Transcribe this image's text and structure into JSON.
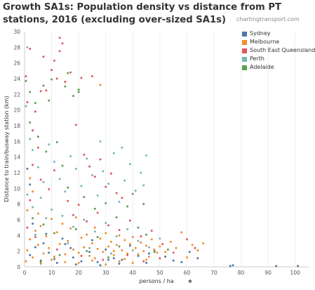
{
  "header": {
    "title": "Growth SA1s: Population density vs distance from PT stations, 2016 (excluding over-sized SA1s)",
    "watermark": "chartingtransport.com"
  },
  "chart_data": {
    "type": "scatter",
    "xlabel": "persons / ha",
    "ylabel": "Distance to train/busway station (km)",
    "xlim": [
      0,
      105
    ],
    "ylim": [
      0,
      30
    ],
    "x_ticks": [
      0,
      10,
      20,
      30,
      40,
      50,
      60,
      70,
      80,
      90,
      100
    ],
    "y_ticks": [
      0,
      2,
      4,
      6,
      8,
      10,
      12,
      14,
      16,
      18,
      20,
      22,
      24,
      26,
      28,
      30
    ],
    "grid": "vertical",
    "legend_position": "top-right",
    "series": [
      {
        "name": "Sydney",
        "color": "#4E79A7",
        "points": [
          [
            2,
            1.5
          ],
          [
            4,
            2.5
          ],
          [
            6,
            0.8
          ],
          [
            9,
            1.8
          ],
          [
            12,
            0.5
          ],
          [
            15,
            2.9
          ],
          [
            18,
            1.2
          ],
          [
            21,
            0.7
          ],
          [
            24,
            1.9
          ],
          [
            27,
            0.6
          ],
          [
            30,
            2.2
          ],
          [
            33,
            1.1
          ],
          [
            36,
            0.9
          ],
          [
            39,
            2.7
          ],
          [
            42,
            1.4
          ],
          [
            45,
            0.5
          ],
          [
            48,
            2.0
          ],
          [
            52,
            1.3
          ],
          [
            55,
            0.8
          ],
          [
            58,
            0.6
          ],
          [
            61,
            1.9
          ],
          [
            64,
            1.1
          ],
          [
            76,
            0.1
          ],
          [
            77,
            0.2
          ],
          [
            93,
            0.1
          ],
          [
            101,
            0.1
          ],
          [
            3,
            5.5
          ],
          [
            8,
            4.2
          ],
          [
            14,
            3.6
          ],
          [
            1,
            12.5
          ],
          [
            2,
            10.5
          ],
          [
            19,
            0.3
          ],
          [
            25,
            3.4
          ],
          [
            35,
            0.4
          ],
          [
            46,
            1.7
          ],
          [
            28,
            0.2
          ],
          [
            11,
            1.0
          ],
          [
            7,
            3.0
          ],
          [
            17,
            2.4
          ],
          [
            31,
            0.9
          ]
        ]
      },
      {
        "name": "Melbourne",
        "color": "#F28E2B",
        "points": [
          [
            1,
            2.1
          ],
          [
            2,
            3.5
          ],
          [
            3,
            1.2
          ],
          [
            4,
            4.6
          ],
          [
            5,
            2.8
          ],
          [
            6,
            5.2
          ],
          [
            7,
            1.7
          ],
          [
            8,
            3.9
          ],
          [
            9,
            2.4
          ],
          [
            10,
            6.1
          ],
          [
            11,
            1.3
          ],
          [
            12,
            4.4
          ],
          [
            13,
            2.9
          ],
          [
            14,
            5.5
          ],
          [
            15,
            1.6
          ],
          [
            16,
            3.3
          ],
          [
            17,
            4.9
          ],
          [
            18,
            2.2
          ],
          [
            19,
            6.3
          ],
          [
            20,
            1.8
          ],
          [
            21,
            3.7
          ],
          [
            22,
            2.5
          ],
          [
            23,
            4.1
          ],
          [
            24,
            1.4
          ],
          [
            25,
            3.0
          ],
          [
            26,
            5.0
          ],
          [
            27,
            2.3
          ],
          [
            28,
            3.6
          ],
          [
            29,
            1.9
          ],
          [
            30,
            4.3
          ],
          [
            31,
            2.6
          ],
          [
            32,
            3.2
          ],
          [
            33,
            1.5
          ],
          [
            34,
            2.8
          ],
          [
            35,
            4.0
          ],
          [
            36,
            2.1
          ],
          [
            37,
            3.4
          ],
          [
            38,
            1.7
          ],
          [
            39,
            2.9
          ],
          [
            40,
            3.8
          ],
          [
            41,
            2.4
          ],
          [
            42,
            1.6
          ],
          [
            43,
            3.1
          ],
          [
            44,
            2.0
          ],
          [
            45,
            2.7
          ],
          [
            46,
            1.3
          ],
          [
            47,
            3.5
          ],
          [
            48,
            2.2
          ],
          [
            49,
            1.8
          ],
          [
            50,
            2.6
          ],
          [
            52,
            1.9
          ],
          [
            54,
            3.2
          ],
          [
            56,
            2.4
          ],
          [
            58,
            4.4
          ],
          [
            60,
            1.2
          ],
          [
            62,
            2.8
          ],
          [
            64,
            2.1
          ],
          [
            66,
            3.0
          ],
          [
            1,
            7.2
          ],
          [
            3,
            9.6
          ],
          [
            5,
            6.8
          ],
          [
            2,
            11.3
          ],
          [
            0.5,
            0.7
          ],
          [
            6,
            0.4
          ],
          [
            10,
            0.9
          ],
          [
            15,
            0.6
          ],
          [
            20,
            0.5
          ],
          [
            25,
            0.8
          ],
          [
            30,
            0.3
          ],
          [
            35,
            0.7
          ],
          [
            40,
            0.5
          ],
          [
            45,
            0.9
          ],
          [
            28,
            23.2
          ],
          [
            33,
            2.0
          ],
          [
            26,
            1.1
          ],
          [
            37,
            1.0
          ]
        ]
      },
      {
        "name": "South East Queensland",
        "color": "#E15759",
        "points": [
          [
            0.5,
            24.3
          ],
          [
            1,
            21.0
          ],
          [
            2,
            27.8
          ],
          [
            3,
            17.4
          ],
          [
            4,
            19.8
          ],
          [
            5,
            15.2
          ],
          [
            7,
            26.8
          ],
          [
            8,
            22.5
          ],
          [
            10,
            25.1
          ],
          [
            12,
            24.0
          ],
          [
            13,
            29.2
          ],
          [
            14,
            28.5
          ],
          [
            15,
            23.6
          ],
          [
            17,
            24.8
          ],
          [
            19,
            18.1
          ],
          [
            22,
            14.3
          ],
          [
            24,
            12.8
          ],
          [
            26,
            11.5
          ],
          [
            28,
            13.7
          ],
          [
            30,
            10.2
          ],
          [
            32,
            11.9
          ],
          [
            34,
            9.4
          ],
          [
            36,
            8.8
          ],
          [
            3,
            13.0
          ],
          [
            6,
            11.1
          ],
          [
            9,
            9.9
          ],
          [
            11,
            12.3
          ],
          [
            16,
            8.4
          ],
          [
            18,
            6.6
          ],
          [
            20,
            7.9
          ],
          [
            23,
            5.8
          ],
          [
            27,
            6.9
          ],
          [
            31,
            5.3
          ],
          [
            35,
            4.7
          ],
          [
            39,
            5.9
          ],
          [
            43,
            3.9
          ],
          [
            47,
            4.6
          ],
          [
            51,
            2.9
          ],
          [
            55,
            1.8
          ],
          [
            60,
            3.5
          ],
          [
            63,
            2.4
          ],
          [
            1,
            5.0
          ],
          [
            2,
            8.5
          ],
          [
            4,
            3.8
          ],
          [
            12,
            2.2
          ],
          [
            21,
            1.4
          ],
          [
            29,
            0.9
          ],
          [
            38,
            1.5
          ],
          [
            44,
            0.7
          ],
          [
            50,
            1.1
          ],
          [
            13,
            27.5
          ],
          [
            11,
            26.3
          ],
          [
            6,
            22.4
          ],
          [
            21,
            24.1
          ],
          [
            25,
            24.3
          ]
        ]
      },
      {
        "name": "Perth",
        "color": "#76B7B2",
        "points": [
          [
            0.5,
            20.5
          ],
          [
            1,
            28.0
          ],
          [
            2,
            16.3
          ],
          [
            3,
            14.9
          ],
          [
            5,
            12.7
          ],
          [
            7,
            10.8
          ],
          [
            9,
            15.6
          ],
          [
            11,
            13.4
          ],
          [
            13,
            11.2
          ],
          [
            15,
            9.6
          ],
          [
            17,
            14.1
          ],
          [
            19,
            12.5
          ],
          [
            21,
            10.3
          ],
          [
            23,
            13.8
          ],
          [
            25,
            11.7
          ],
          [
            27,
            9.1
          ],
          [
            29,
            12.2
          ],
          [
            31,
            10.6
          ],
          [
            33,
            14.5
          ],
          [
            35,
            8.3
          ],
          [
            37,
            11.0
          ],
          [
            39,
            13.1
          ],
          [
            41,
            9.7
          ],
          [
            43,
            12.0
          ],
          [
            44,
            10.4
          ],
          [
            45,
            14.2
          ],
          [
            1,
            9.2
          ],
          [
            3,
            7.6
          ],
          [
            6,
            8.8
          ],
          [
            8,
            6.2
          ],
          [
            10,
            7.3
          ],
          [
            14,
            6.5
          ],
          [
            18,
            5.1
          ],
          [
            22,
            6.0
          ],
          [
            26,
            4.5
          ],
          [
            30,
            5.6
          ],
          [
            34,
            3.9
          ],
          [
            38,
            4.8
          ],
          [
            42,
            3.3
          ],
          [
            46,
            2.5
          ],
          [
            50,
            3.6
          ],
          [
            4,
            4.1
          ],
          [
            16,
            3.0
          ],
          [
            24,
            2.4
          ],
          [
            32,
            1.7
          ],
          [
            40,
            2.1
          ],
          [
            28,
            16.0
          ],
          [
            36,
            15.2
          ]
        ]
      },
      {
        "name": "Adelaide",
        "color": "#59A14F",
        "points": [
          [
            0.5,
            23.7
          ],
          [
            2,
            22.3
          ],
          [
            4,
            20.9
          ],
          [
            7,
            23.1
          ],
          [
            10,
            23.9
          ],
          [
            15,
            23.0
          ],
          [
            18,
            21.8
          ],
          [
            20,
            22.6
          ],
          [
            20,
            22.3
          ],
          [
            16,
            24.7
          ],
          [
            9,
            21.2
          ],
          [
            2,
            18.4
          ],
          [
            5,
            16.6
          ],
          [
            8,
            14.7
          ],
          [
            12,
            15.9
          ],
          [
            14,
            12.9
          ],
          [
            16,
            10.1
          ],
          [
            22,
            8.9
          ],
          [
            26,
            7.4
          ],
          [
            30,
            8.1
          ],
          [
            34,
            6.3
          ],
          [
            38,
            7.7
          ],
          [
            40,
            9.3
          ],
          [
            44,
            8.0
          ],
          [
            42,
            5.0
          ],
          [
            3,
            6.2
          ],
          [
            7,
            5.4
          ],
          [
            11,
            4.3
          ],
          [
            19,
            4.8
          ],
          [
            27,
            3.8
          ],
          [
            35,
            2.6
          ],
          [
            48,
            1.9
          ],
          [
            13,
            1.5
          ],
          [
            23,
            2.0
          ],
          [
            31,
            1.2
          ],
          [
            6,
            0.6
          ],
          [
            45,
            4.1
          ],
          [
            53,
            2.2
          ]
        ]
      }
    ]
  }
}
